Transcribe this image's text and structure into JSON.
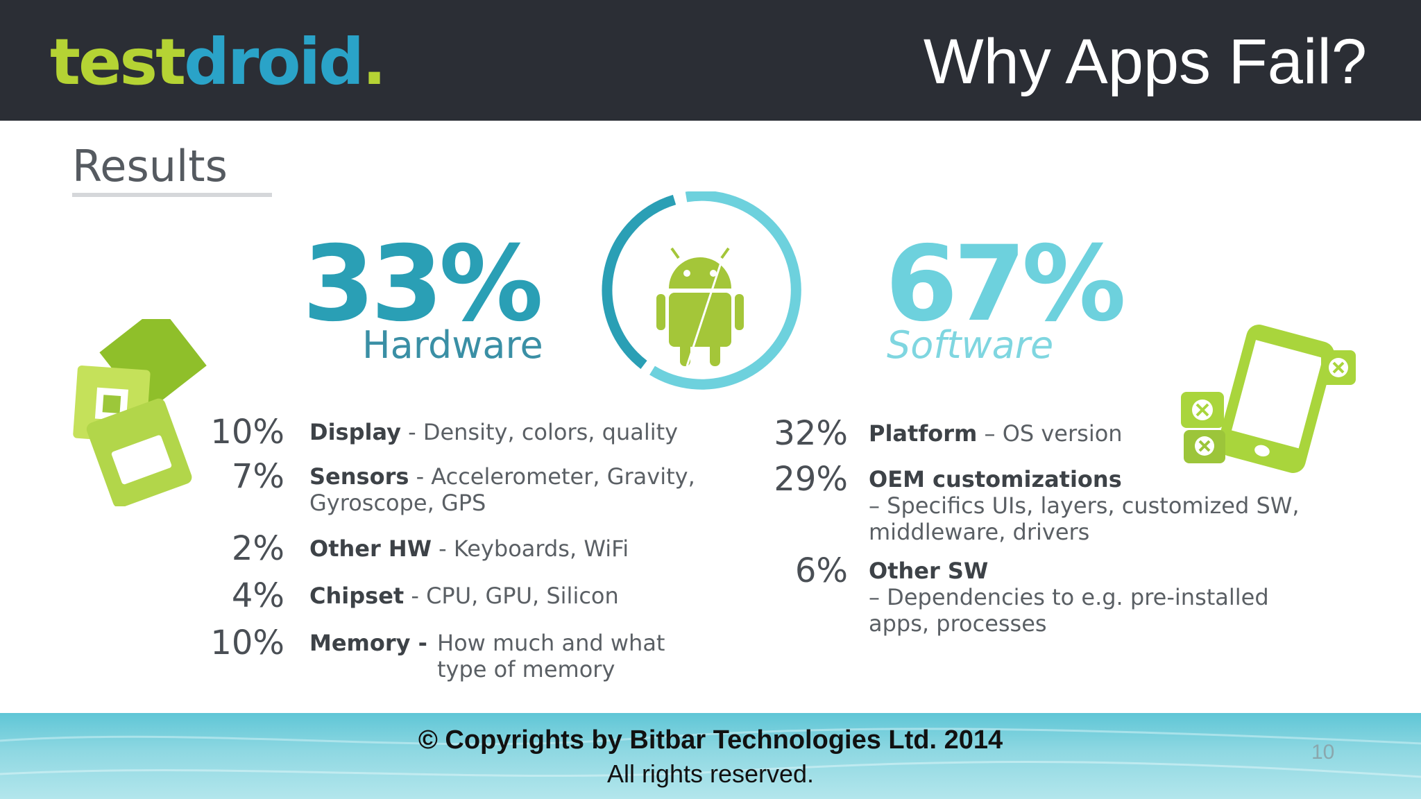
{
  "header": {
    "logo": {
      "part1": "test",
      "part2": "droid",
      "dot": "."
    },
    "title": "Why Apps Fail?"
  },
  "section_heading": "Results",
  "hardware": {
    "percent": "33%",
    "label": "Hardware"
  },
  "software": {
    "percent": "67%",
    "label": "Software"
  },
  "hardware_items": [
    {
      "percent": "10%",
      "name": "Display",
      "detail": " - Density, colors, quality"
    },
    {
      "percent": "7%",
      "name": "Sensors",
      "detail": " - Accelerometer, Gravity, Gyroscope, GPS"
    },
    {
      "percent": "2%",
      "name": "Other HW",
      "detail": " - Keyboards, WiFi"
    },
    {
      "percent": "4%",
      "name": "Chipset",
      "detail": " - CPU, GPU, Silicon"
    },
    {
      "percent": "10%",
      "name": "Memory -",
      "detail": "How much and what type of memory"
    }
  ],
  "software_items": [
    {
      "percent": "32%",
      "name": "Platform",
      "detail": " – OS version"
    },
    {
      "percent": "29%",
      "name": "OEM customizations",
      "detail": "– Specifics UIs, layers, customized SW, middleware, drivers"
    },
    {
      "percent": "6%",
      "name": "Other SW",
      "detail": "– Dependencies to e.g. pre-installed apps, processes"
    }
  ],
  "footer": {
    "copyright": "© Copyrights by Bitbar Technologies Ltd. 2014",
    "rights": "All rights reserved.",
    "page_number": "10"
  },
  "colors": {
    "header_bg": "#2b2e35",
    "logo_green": "#b5d334",
    "logo_blue": "#2aa3c8",
    "hardware_blue": "#2a9fb5",
    "software_blue": "#6dd1dd",
    "android_green": "#a4c639",
    "footer_teal": "#5fc6d6"
  }
}
